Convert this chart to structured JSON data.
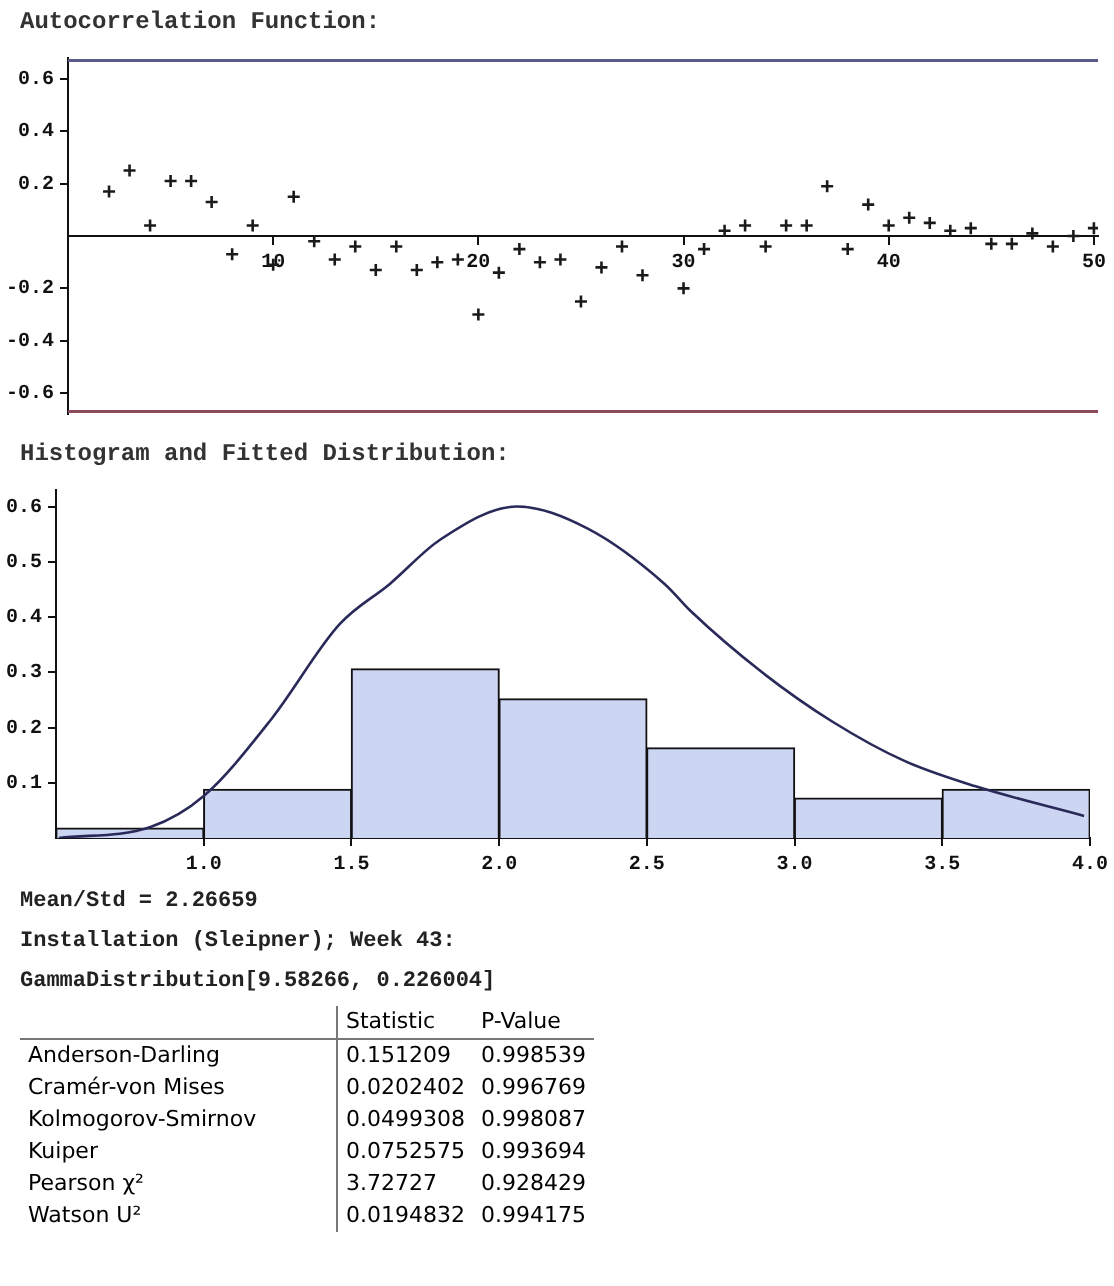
{
  "chart_data": [
    {
      "type": "scatter",
      "title": "Autocorrelation Function:",
      "marker": "cross",
      "color": "#1a1a1a",
      "grid": false,
      "legend": false,
      "x": [
        2,
        3,
        4,
        5,
        6,
        7,
        8,
        9,
        10,
        11,
        12,
        13,
        14,
        15,
        16,
        17,
        18,
        19,
        20,
        21,
        22,
        23,
        24,
        25,
        26,
        27,
        28,
        30,
        31,
        32,
        33,
        34,
        35,
        36,
        37,
        38,
        39,
        40,
        41,
        42,
        43,
        44,
        45,
        46,
        47,
        48,
        49,
        50
      ],
      "values": [
        0.17,
        0.25,
        0.04,
        0.21,
        0.21,
        0.13,
        -0.07,
        0.04,
        -0.11,
        0.15,
        -0.02,
        -0.09,
        -0.04,
        -0.13,
        -0.04,
        -0.13,
        -0.1,
        -0.09,
        -0.3,
        -0.14,
        -0.05,
        -0.1,
        -0.09,
        -0.25,
        -0.12,
        -0.04,
        -0.15,
        -0.2,
        -0.05,
        0.02,
        0.04,
        -0.04,
        0.04,
        0.04,
        0.19,
        -0.05,
        0.12,
        0.04,
        0.07,
        0.05,
        0.02,
        0.03,
        -0.03,
        -0.03,
        0.01,
        -0.04,
        0.0,
        0.03
      ],
      "xlim": [
        0,
        50.2
      ],
      "xticks": [
        10,
        20,
        30,
        40,
        50
      ],
      "ylim": [
        -0.68,
        0.68
      ],
      "yticks": [
        -0.6,
        -0.4,
        -0.2,
        0.2,
        0.4,
        0.6
      ],
      "ref_lines": [
        {
          "axis": "y",
          "value": 0.67,
          "color": "#5a5a8c"
        },
        {
          "axis": "y",
          "value": -0.67,
          "color": "#8c4a5a"
        }
      ]
    },
    {
      "type": "histogram",
      "title": "Histogram and Fitted Distribution:",
      "color": "#ccd5f2",
      "grid": false,
      "legend": false,
      "bins": [
        0.5,
        1.0,
        1.5,
        2.0,
        2.5,
        3.0,
        3.5,
        4.0
      ],
      "values": [
        0.018,
        0.088,
        0.306,
        0.252,
        0.163,
        0.072,
        0.088
      ],
      "series": [
        {
          "type": "line",
          "color": "#2a2a5a",
          "x": [
            0.51,
            0.82,
            1.0,
            1.23,
            1.46,
            1.63,
            1.8,
            2.06,
            2.3,
            2.56,
            2.65,
            2.89,
            3.13,
            3.37,
            3.61,
            3.98
          ],
          "values": [
            0,
            0.02,
            0.076,
            0.216,
            0.387,
            0.46,
            0.54,
            0.6,
            0.56,
            0.46,
            0.41,
            0.3,
            0.21,
            0.14,
            0.094,
            0.04
          ]
        }
      ],
      "xlim": [
        0.5,
        4.0
      ],
      "xticks": [
        {
          "value": 1,
          "label": "1.0"
        },
        1.5,
        {
          "value": 2,
          "label": "2.0"
        },
        2.5,
        {
          "value": 3,
          "label": "3.0"
        },
        3.5,
        {
          "value": 4,
          "label": "4.0"
        }
      ],
      "ylim": [
        0,
        0.63
      ],
      "yticks": [
        0.1,
        0.2,
        0.3,
        0.4,
        0.5,
        0.6
      ]
    },
    {
      "type": "other",
      "annotations": [
        "Mean/Std = 2.26659",
        "Installation (Sleipner); Week 43:",
        "GammaDistribution[9.58266, 0.226004]",
        "Statistic",
        "P-Value",
        "Anderson-Darling",
        "0.151209",
        "0.998539",
        "Cramér-von Mises",
        "0.0202402",
        "0.996769",
        "Kolmogorov-Smirnov",
        "0.0499308",
        "0.998087",
        "Kuiper",
        "0.0752575",
        "0.993694",
        "Pearson χ²",
        "3.72727",
        "0.928429",
        "Watson U²",
        "0.0194832",
        "0.994175"
      ]
    }
  ]
}
